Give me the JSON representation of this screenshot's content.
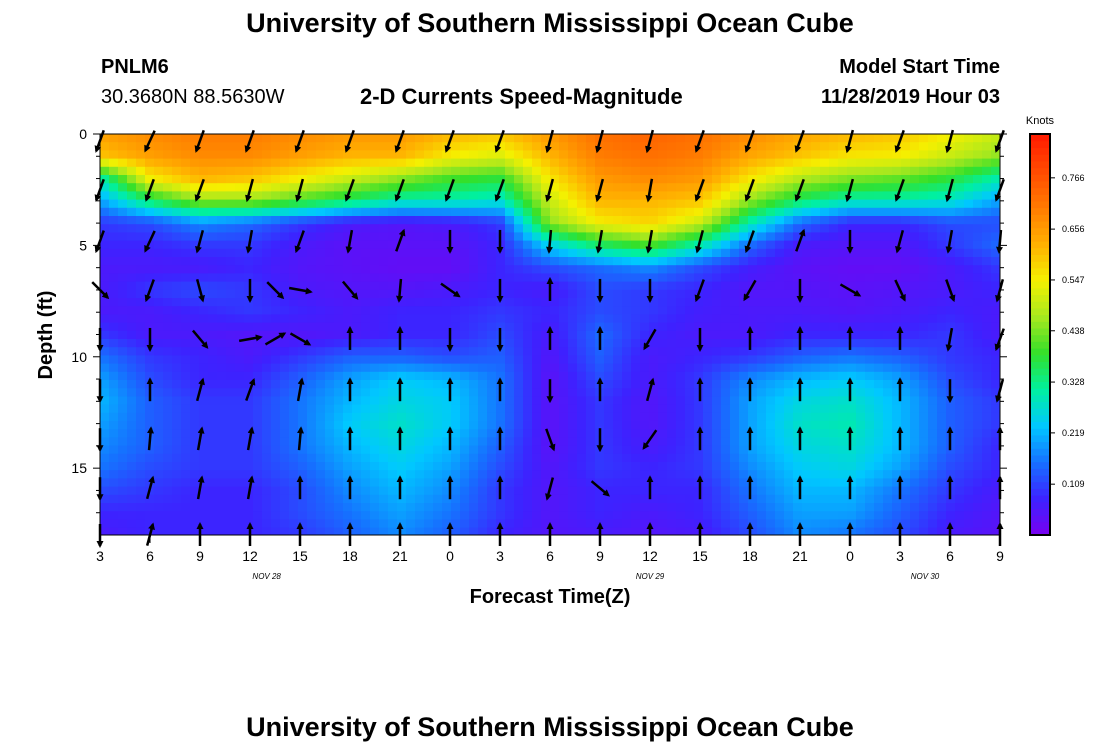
{
  "header": {
    "title_top": "University of Southern Mississippi Ocean Cube",
    "title_bottom": "University of Southern Mississippi Ocean Cube",
    "station_id": "PNLM6",
    "station_coords": "30.3680N 88.5630W",
    "chart_title": "2-D Currents Speed-Magnitude",
    "model_start_label": "Model Start Time",
    "model_start_value": "11/28/2019 Hour 03"
  },
  "chart_data": {
    "type": "heatmap",
    "title": "2-D Currents Speed-Magnitude",
    "xlabel": "Forecast Time(Z)",
    "ylabel": "Depth (ft)",
    "ylim": [
      0,
      18
    ],
    "y_ticks": [
      0,
      5,
      10,
      15
    ],
    "x_hours_range": [
      0,
      54
    ],
    "x_ticks": [
      {
        "label": "3",
        "hour": 0
      },
      {
        "label": "6",
        "hour": 3
      },
      {
        "label": "9",
        "hour": 6
      },
      {
        "label": "12",
        "hour": 9
      },
      {
        "label": "15",
        "hour": 12
      },
      {
        "label": "18",
        "hour": 15
      },
      {
        "label": "21",
        "hour": 18
      },
      {
        "label": "0",
        "hour": 21
      },
      {
        "label": "3",
        "hour": 24
      },
      {
        "label": "6",
        "hour": 27
      },
      {
        "label": "9",
        "hour": 30
      },
      {
        "label": "12",
        "hour": 33
      },
      {
        "label": "15",
        "hour": 36
      },
      {
        "label": "18",
        "hour": 39
      },
      {
        "label": "21",
        "hour": 42
      },
      {
        "label": "0",
        "hour": 45
      },
      {
        "label": "3",
        "hour": 48
      },
      {
        "label": "6",
        "hour": 51
      },
      {
        "label": "9",
        "hour": 54
      }
    ],
    "date_labels": [
      {
        "label": "NOV 28",
        "hour": 10
      },
      {
        "label": "NOV 29",
        "hour": 33
      },
      {
        "label": "NOV 30",
        "hour": 49.5
      }
    ],
    "colorbar": {
      "unit": "Knots",
      "range": [
        0,
        0.86
      ],
      "ticks": [
        "0.109",
        "0.219",
        "0.328",
        "0.438",
        "0.547",
        "0.656",
        "0.766"
      ],
      "colors": [
        "#7a00f0",
        "#3d22ff",
        "#1670ff",
        "#00c8ff",
        "#00f0a0",
        "#33e02a",
        "#a8e81e",
        "#f5f000",
        "#ffb000",
        "#ff7a00",
        "#ff4a00",
        "#ff1a00"
      ]
    },
    "grid_hours": [
      0,
      3,
      6,
      9,
      12,
      15,
      18,
      21,
      24,
      27,
      30,
      33,
      36,
      39,
      42,
      45,
      48,
      51,
      54
    ],
    "grid_depths": [
      0,
      1,
      2,
      3,
      4,
      5,
      6,
      7,
      8,
      9,
      10,
      11,
      12,
      13,
      14,
      15,
      16,
      17,
      18
    ],
    "speed_grid": [
      [
        0.65,
        0.68,
        0.7,
        0.7,
        0.68,
        0.66,
        0.66,
        0.62,
        0.6,
        0.66,
        0.72,
        0.74,
        0.72,
        0.68,
        0.64,
        0.62,
        0.6,
        0.55,
        0.5
      ],
      [
        0.6,
        0.65,
        0.68,
        0.68,
        0.65,
        0.62,
        0.62,
        0.55,
        0.52,
        0.62,
        0.7,
        0.72,
        0.7,
        0.64,
        0.6,
        0.56,
        0.55,
        0.5,
        0.45
      ],
      [
        0.3,
        0.55,
        0.62,
        0.6,
        0.55,
        0.5,
        0.45,
        0.4,
        0.38,
        0.56,
        0.66,
        0.68,
        0.66,
        0.56,
        0.48,
        0.44,
        0.42,
        0.38,
        0.3
      ],
      [
        0.2,
        0.35,
        0.45,
        0.45,
        0.4,
        0.35,
        0.3,
        0.3,
        0.28,
        0.5,
        0.62,
        0.62,
        0.6,
        0.45,
        0.35,
        0.3,
        0.3,
        0.28,
        0.2
      ],
      [
        0.1,
        0.12,
        0.18,
        0.15,
        0.1,
        0.06,
        0.05,
        0.06,
        0.1,
        0.45,
        0.55,
        0.58,
        0.5,
        0.3,
        0.15,
        0.08,
        0.08,
        0.12,
        0.12
      ],
      [
        0.08,
        0.08,
        0.1,
        0.1,
        0.06,
        0.04,
        0.04,
        0.04,
        0.08,
        0.25,
        0.35,
        0.4,
        0.3,
        0.15,
        0.06,
        0.05,
        0.05,
        0.1,
        0.15
      ],
      [
        0.06,
        0.06,
        0.06,
        0.08,
        0.05,
        0.04,
        0.03,
        0.03,
        0.08,
        0.12,
        0.15,
        0.18,
        0.12,
        0.07,
        0.04,
        0.03,
        0.03,
        0.06,
        0.1
      ],
      [
        0.06,
        0.1,
        0.12,
        0.1,
        0.06,
        0.05,
        0.05,
        0.06,
        0.08,
        0.06,
        0.12,
        0.1,
        0.08,
        0.05,
        0.05,
        0.04,
        0.05,
        0.06,
        0.08
      ],
      [
        0.06,
        0.06,
        0.08,
        0.1,
        0.08,
        0.06,
        0.08,
        0.08,
        0.1,
        0.08,
        0.12,
        0.1,
        0.07,
        0.06,
        0.06,
        0.05,
        0.06,
        0.08,
        0.06
      ],
      [
        0.1,
        0.06,
        0.06,
        0.05,
        0.05,
        0.06,
        0.08,
        0.08,
        0.12,
        0.06,
        0.15,
        0.08,
        0.06,
        0.06,
        0.08,
        0.08,
        0.08,
        0.1,
        0.06
      ],
      [
        0.16,
        0.1,
        0.08,
        0.06,
        0.1,
        0.14,
        0.14,
        0.12,
        0.14,
        0.05,
        0.14,
        0.06,
        0.08,
        0.1,
        0.14,
        0.16,
        0.14,
        0.1,
        0.08
      ],
      [
        0.2,
        0.12,
        0.08,
        0.08,
        0.14,
        0.2,
        0.24,
        0.22,
        0.16,
        0.04,
        0.12,
        0.06,
        0.1,
        0.18,
        0.22,
        0.24,
        0.2,
        0.12,
        0.08
      ],
      [
        0.22,
        0.14,
        0.1,
        0.1,
        0.16,
        0.22,
        0.26,
        0.24,
        0.16,
        0.04,
        0.1,
        0.05,
        0.1,
        0.2,
        0.26,
        0.28,
        0.22,
        0.14,
        0.1
      ],
      [
        0.2,
        0.14,
        0.1,
        0.1,
        0.16,
        0.24,
        0.28,
        0.24,
        0.16,
        0.04,
        0.1,
        0.05,
        0.1,
        0.2,
        0.28,
        0.3,
        0.22,
        0.14,
        0.1
      ],
      [
        0.18,
        0.14,
        0.1,
        0.1,
        0.16,
        0.22,
        0.26,
        0.22,
        0.14,
        0.04,
        0.1,
        0.06,
        0.1,
        0.2,
        0.26,
        0.28,
        0.22,
        0.14,
        0.08
      ],
      [
        0.16,
        0.12,
        0.1,
        0.1,
        0.14,
        0.2,
        0.24,
        0.2,
        0.12,
        0.05,
        0.1,
        0.08,
        0.1,
        0.18,
        0.24,
        0.26,
        0.2,
        0.12,
        0.08
      ],
      [
        0.12,
        0.1,
        0.08,
        0.08,
        0.12,
        0.18,
        0.22,
        0.18,
        0.1,
        0.05,
        0.08,
        0.08,
        0.08,
        0.16,
        0.22,
        0.22,
        0.16,
        0.1,
        0.06
      ],
      [
        0.08,
        0.08,
        0.08,
        0.08,
        0.12,
        0.16,
        0.2,
        0.16,
        0.1,
        0.05,
        0.08,
        0.06,
        0.08,
        0.14,
        0.2,
        0.2,
        0.14,
        0.08,
        0.05
      ],
      [
        0.06,
        0.08,
        0.08,
        0.08,
        0.1,
        0.14,
        0.18,
        0.14,
        0.08,
        0.05,
        0.06,
        0.05,
        0.06,
        0.12,
        0.18,
        0.16,
        0.12,
        0.06,
        0.04
      ]
    ],
    "vector_depths": [
      0.3,
      2.5,
      4.8,
      7,
      9.2,
      11.5,
      13.7,
      15.9,
      18
    ],
    "vectors": [
      {
        "hour": 0,
        "dirs": [
          200,
          200,
          200,
          135,
          180,
          180,
          180,
          180,
          180
        ]
      },
      {
        "hour": 3,
        "dirs": [
          205,
          200,
          205,
          200,
          180,
          0,
          5,
          15,
          15
        ]
      },
      {
        "hour": 6,
        "dirs": [
          200,
          200,
          195,
          165,
          140,
          15,
          10,
          10,
          0
        ]
      },
      {
        "hour": 9,
        "dirs": [
          200,
          195,
          190,
          180,
          80,
          20,
          10,
          10,
          0
        ]
      },
      {
        "hour": 10.5,
        "dirs": [
          null,
          null,
          null,
          135,
          60,
          null,
          null,
          null,
          null
        ]
      },
      {
        "hour": 12,
        "dirs": [
          200,
          195,
          200,
          100,
          120,
          10,
          5,
          0,
          0
        ]
      },
      {
        "hour": 15,
        "dirs": [
          200,
          200,
          190,
          140,
          0,
          0,
          0,
          0,
          0
        ]
      },
      {
        "hour": 18,
        "dirs": [
          200,
          200,
          20,
          185,
          0,
          0,
          0,
          0,
          0
        ]
      },
      {
        "hour": 21,
        "dirs": [
          200,
          200,
          180,
          125,
          180,
          0,
          0,
          0,
          0
        ]
      },
      {
        "hour": 24,
        "dirs": [
          200,
          200,
          180,
          180,
          180,
          0,
          0,
          0,
          0
        ]
      },
      {
        "hour": 27,
        "dirs": [
          195,
          195,
          185,
          0,
          0,
          180,
          160,
          195,
          0
        ]
      },
      {
        "hour": 30,
        "dirs": [
          195,
          195,
          190,
          180,
          0,
          0,
          180,
          130,
          0
        ]
      },
      {
        "hour": 33,
        "dirs": [
          195,
          190,
          190,
          180,
          210,
          15,
          215,
          0,
          0
        ]
      },
      {
        "hour": 36,
        "dirs": [
          200,
          200,
          195,
          200,
          180,
          0,
          0,
          0,
          0
        ]
      },
      {
        "hour": 39,
        "dirs": [
          200,
          200,
          200,
          210,
          0,
          0,
          0,
          0,
          0
        ]
      },
      {
        "hour": 42,
        "dirs": [
          200,
          200,
          20,
          180,
          0,
          0,
          0,
          0,
          0
        ]
      },
      {
        "hour": 45,
        "dirs": [
          195,
          195,
          180,
          120,
          0,
          0,
          0,
          0,
          0
        ]
      },
      {
        "hour": 48,
        "dirs": [
          200,
          200,
          195,
          155,
          0,
          0,
          0,
          0,
          0
        ]
      },
      {
        "hour": 51,
        "dirs": [
          195,
          195,
          190,
          160,
          190,
          180,
          0,
          0,
          0
        ]
      },
      {
        "hour": 54,
        "dirs": [
          200,
          200,
          185,
          195,
          200,
          195,
          0,
          0,
          0
        ]
      }
    ]
  }
}
